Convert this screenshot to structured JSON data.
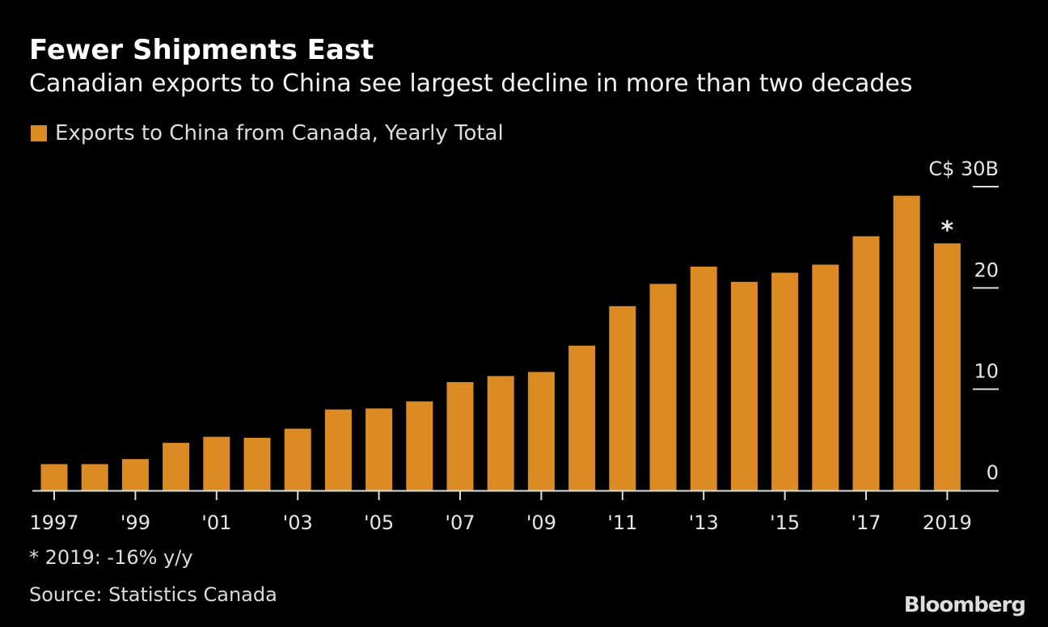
{
  "chart_data": {
    "type": "bar",
    "title": "Fewer Shipments East",
    "subtitle": "Canadian exports to China see largest decline in more than two decades",
    "legend": [
      {
        "name": "Exports to China from Canada, Yearly Total",
        "color": "#dc8a23"
      }
    ],
    "legend_position": "top-left",
    "categories": [
      "1997",
      "1998",
      "1999",
      "2000",
      "2001",
      "2002",
      "2003",
      "2004",
      "2005",
      "2006",
      "2007",
      "2008",
      "2009",
      "2010",
      "2011",
      "2012",
      "2013",
      "2014",
      "2015",
      "2016",
      "2017",
      "2018",
      "2019"
    ],
    "series": [
      {
        "name": "Exports to China from Canada, Yearly Total",
        "values": [
          2.6,
          2.6,
          3.1,
          4.7,
          5.3,
          5.2,
          6.1,
          8.0,
          8.1,
          8.8,
          10.7,
          11.3,
          11.7,
          14.3,
          18.2,
          20.4,
          22.1,
          20.6,
          21.5,
          22.3,
          25.1,
          29.1,
          24.4
        ]
      }
    ],
    "x_tick_labels": [
      {
        "category": "1997",
        "label": "1997"
      },
      {
        "category": "1999",
        "label": "'99"
      },
      {
        "category": "2001",
        "label": "'01"
      },
      {
        "category": "2003",
        "label": "'03"
      },
      {
        "category": "2005",
        "label": "'05"
      },
      {
        "category": "2007",
        "label": "'07"
      },
      {
        "category": "2009",
        "label": "'09"
      },
      {
        "category": "2011",
        "label": "'11"
      },
      {
        "category": "2013",
        "label": "'13"
      },
      {
        "category": "2015",
        "label": "'15"
      },
      {
        "category": "2017",
        "label": "'17"
      },
      {
        "category": "2019",
        "label": "2019"
      }
    ],
    "y_ticks": [
      {
        "value": 0,
        "label": "0"
      },
      {
        "value": 10,
        "label": "10"
      },
      {
        "value": 20,
        "label": "20"
      },
      {
        "value": 30,
        "label": "C$ 30B"
      }
    ],
    "ylim": [
      0,
      30
    ],
    "y_axis_side": "right",
    "grid": false,
    "annotation": {
      "category": "2019",
      "marker": "*"
    },
    "bar_color": "#dc8a23"
  },
  "footnote": "* 2019: -16% y/y",
  "source": "Source: Statistics Canada",
  "logo": "Bloomberg"
}
